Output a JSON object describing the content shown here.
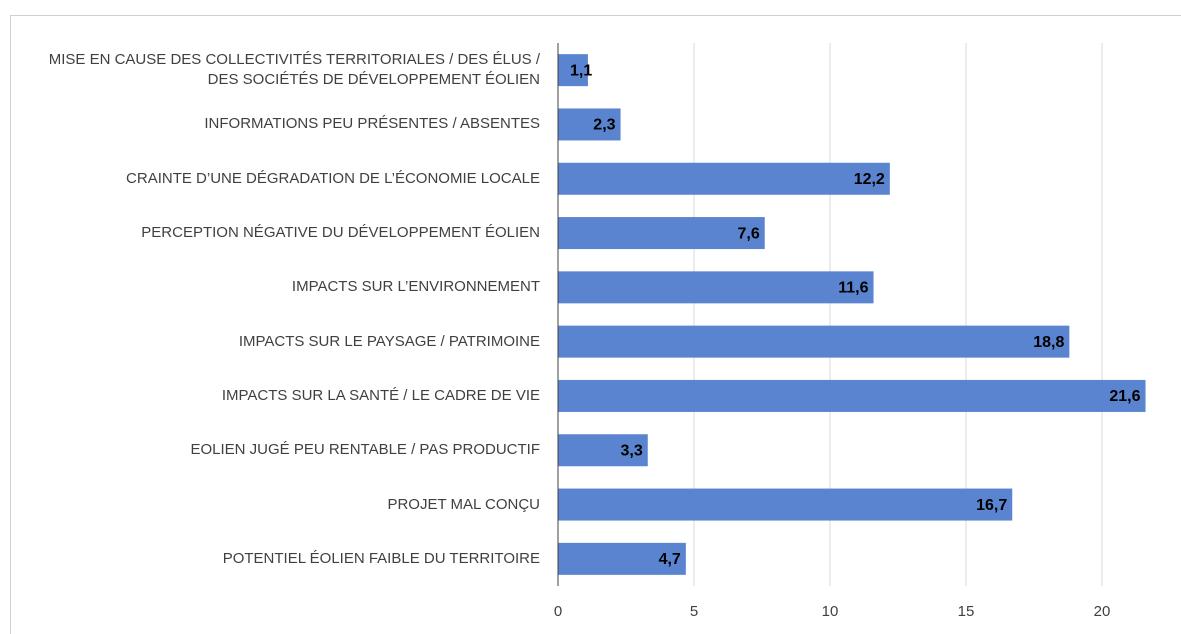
{
  "chart_data": {
    "type": "bar",
    "orientation": "horizontal",
    "categories": [
      "MISE EN CAUSE DES COLLECTIVITÉS TERRITORIALES / DES ÉLUS / DES SOCIÉTÉS DE DÉVELOPPEMENT ÉOLIEN",
      "INFORMATIONS PEU PRÉSENTES / ABSENTES",
      "CRAINTE D’UNE DÉGRADATION DE L’ÉCONOMIE LOCALE",
      "PERCEPTION NÉGATIVE DU DÉVELOPPEMENT ÉOLIEN",
      "IMPACTS SUR L’ENVIRONNEMENT",
      "IMPACTS SUR LE PAYSAGE / PATRIMOINE",
      "IMPACTS SUR LA SANTÉ / LE CADRE DE VIE",
      "EOLIEN JUGÉ PEU RENTABLE / PAS PRODUCTIF",
      "PROJET MAL CONÇU",
      "POTENTIEL ÉOLIEN FAIBLE DU TERRITOIRE"
    ],
    "values": [
      1.1,
      2.3,
      12.2,
      7.6,
      11.6,
      18.8,
      21.6,
      3.3,
      16.7,
      4.7
    ],
    "value_labels": [
      "1,1",
      "2,3",
      "12,2",
      "7,6",
      "11,6",
      "18,8",
      "21,6",
      "3,3",
      "16,7",
      "4,7"
    ],
    "color": "#5a84cf",
    "xlim": [
      0,
      22.5
    ],
    "xticks": [
      0,
      5,
      10,
      15,
      20
    ],
    "grid": true
  }
}
